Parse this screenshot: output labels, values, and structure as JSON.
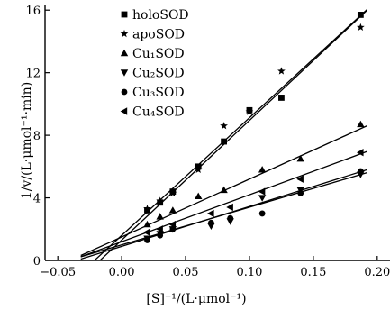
{
  "chart_data": {
    "type": "scatter",
    "xlabel": "[S]⁻¹/(L·μmol⁻¹)",
    "ylabel": "1/v/(L·μmol⁻¹·min)",
    "xlim": [
      -0.06,
      0.21
    ],
    "ylim": [
      0,
      16.3
    ],
    "x_ticks": [
      -0.05,
      0.0,
      0.05,
      0.1,
      0.15,
      0.2
    ],
    "x_tick_labels": [
      "−0.05",
      "0.00",
      "0.05",
      "0.10",
      "0.15",
      "0.20"
    ],
    "y_ticks": [
      0,
      4,
      8,
      12,
      16
    ],
    "y_tick_labels": [
      "0",
      "4",
      "8",
      "12",
      "16"
    ],
    "legend_position": "top-left",
    "grid": false,
    "series": [
      {
        "name": "holoSOD",
        "marker": "square",
        "points": [
          [
            0.02,
            3.2
          ],
          [
            0.03,
            3.7
          ],
          [
            0.04,
            4.4
          ],
          [
            0.06,
            6.0
          ],
          [
            0.08,
            7.6
          ],
          [
            0.1,
            9.6
          ],
          [
            0.125,
            10.4
          ],
          [
            0.187,
            15.7
          ]
        ],
        "fit": {
          "slope": 75.2,
          "intercept": 1.6
        }
      },
      {
        "name": "apoSOD",
        "marker": "star",
        "points": [
          [
            0.02,
            3.3
          ],
          [
            0.03,
            3.8
          ],
          [
            0.04,
            4.3
          ],
          [
            0.06,
            5.8
          ],
          [
            0.08,
            8.6
          ],
          [
            0.1,
            9.5
          ],
          [
            0.125,
            12.1
          ],
          [
            0.187,
            14.9
          ]
        ],
        "fit": {
          "slope": 76.5,
          "intercept": 1.3
        }
      },
      {
        "name": "Cu₁SOD",
        "marker": "triangle-up",
        "points": [
          [
            0.02,
            2.3
          ],
          [
            0.03,
            2.8
          ],
          [
            0.04,
            3.2
          ],
          [
            0.06,
            4.1
          ],
          [
            0.08,
            4.5
          ],
          [
            0.11,
            5.8
          ],
          [
            0.14,
            6.5
          ],
          [
            0.187,
            8.7
          ]
        ],
        "fit": {
          "slope": 37.0,
          "intercept": 1.5
        }
      },
      {
        "name": "Cu₂SOD",
        "marker": "triangle-down",
        "points": [
          [
            0.02,
            1.4
          ],
          [
            0.03,
            1.7
          ],
          [
            0.04,
            2.0
          ],
          [
            0.07,
            2.2
          ],
          [
            0.085,
            2.5
          ],
          [
            0.11,
            4.0
          ],
          [
            0.14,
            4.5
          ],
          [
            0.187,
            5.5
          ]
        ],
        "fit": {
          "slope": 24.0,
          "intercept": 1.0
        }
      },
      {
        "name": "Cu₃SOD",
        "marker": "circle",
        "points": [
          [
            0.02,
            1.3
          ],
          [
            0.03,
            1.6
          ],
          [
            0.04,
            2.0
          ],
          [
            0.07,
            2.4
          ],
          [
            0.085,
            2.7
          ],
          [
            0.11,
            3.0
          ],
          [
            0.14,
            4.3
          ],
          [
            0.187,
            5.7
          ]
        ],
        "fit": {
          "slope": 25.5,
          "intercept": 0.9
        }
      },
      {
        "name": "Cu₄SOD",
        "marker": "triangle-left",
        "points": [
          [
            0.02,
            1.8
          ],
          [
            0.03,
            2.0
          ],
          [
            0.04,
            2.3
          ],
          [
            0.07,
            3.0
          ],
          [
            0.085,
            3.4
          ],
          [
            0.11,
            4.4
          ],
          [
            0.14,
            5.2
          ],
          [
            0.187,
            6.9
          ]
        ],
        "fit": {
          "slope": 30.0,
          "intercept": 1.2
        }
      }
    ]
  }
}
